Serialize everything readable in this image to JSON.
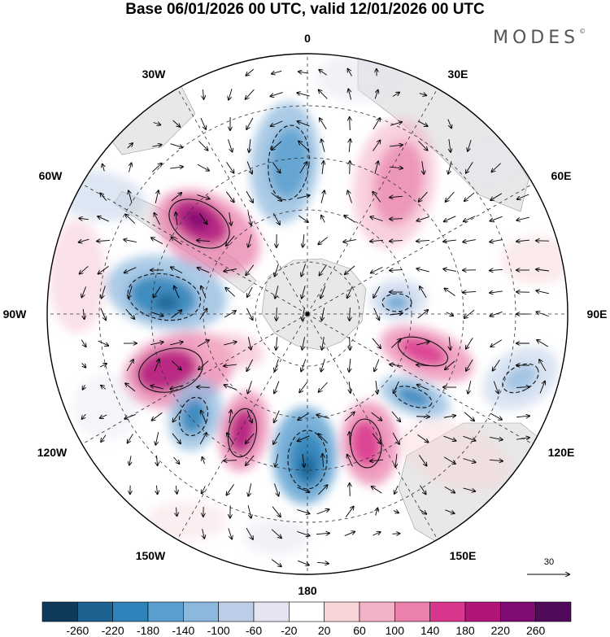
{
  "title": "Base 06/01/2026 00 UTC, valid 12/01/2026 00 UTC",
  "brand": "MODES",
  "brand_mark": "©",
  "longitude_labels": {
    "lon_0": "0",
    "lon_30e": "30E",
    "lon_60e": "60E",
    "lon_90e": "90E",
    "lon_120e": "120E",
    "lon_150e": "150E",
    "lon_180": "180",
    "lon_150w": "150W",
    "lon_120w": "120W",
    "lon_90w": "90W",
    "lon_60w": "60W",
    "lon_30w": "30W"
  },
  "reference_vector": {
    "value": "30"
  },
  "colorbar": {
    "ticks": [
      "-260",
      "-220",
      "-180",
      "-140",
      "-100",
      "-60",
      "-20",
      "20",
      "60",
      "100",
      "140",
      "180",
      "220",
      "260"
    ],
    "colors": [
      "#0e3b5c",
      "#1c6391",
      "#2f82ba",
      "#5a9fcf",
      "#8db8dd",
      "#bccde8",
      "#e4e4f2",
      "#ffffff",
      "#f8d5d9",
      "#f3b3c6",
      "#ea80ac",
      "#d9378d",
      "#b2147a",
      "#7f0c72",
      "#4f0a5a"
    ]
  },
  "colors": {
    "land": "#e8e8e8",
    "positive": "#d9378d",
    "negative": "#2f82ba"
  }
}
